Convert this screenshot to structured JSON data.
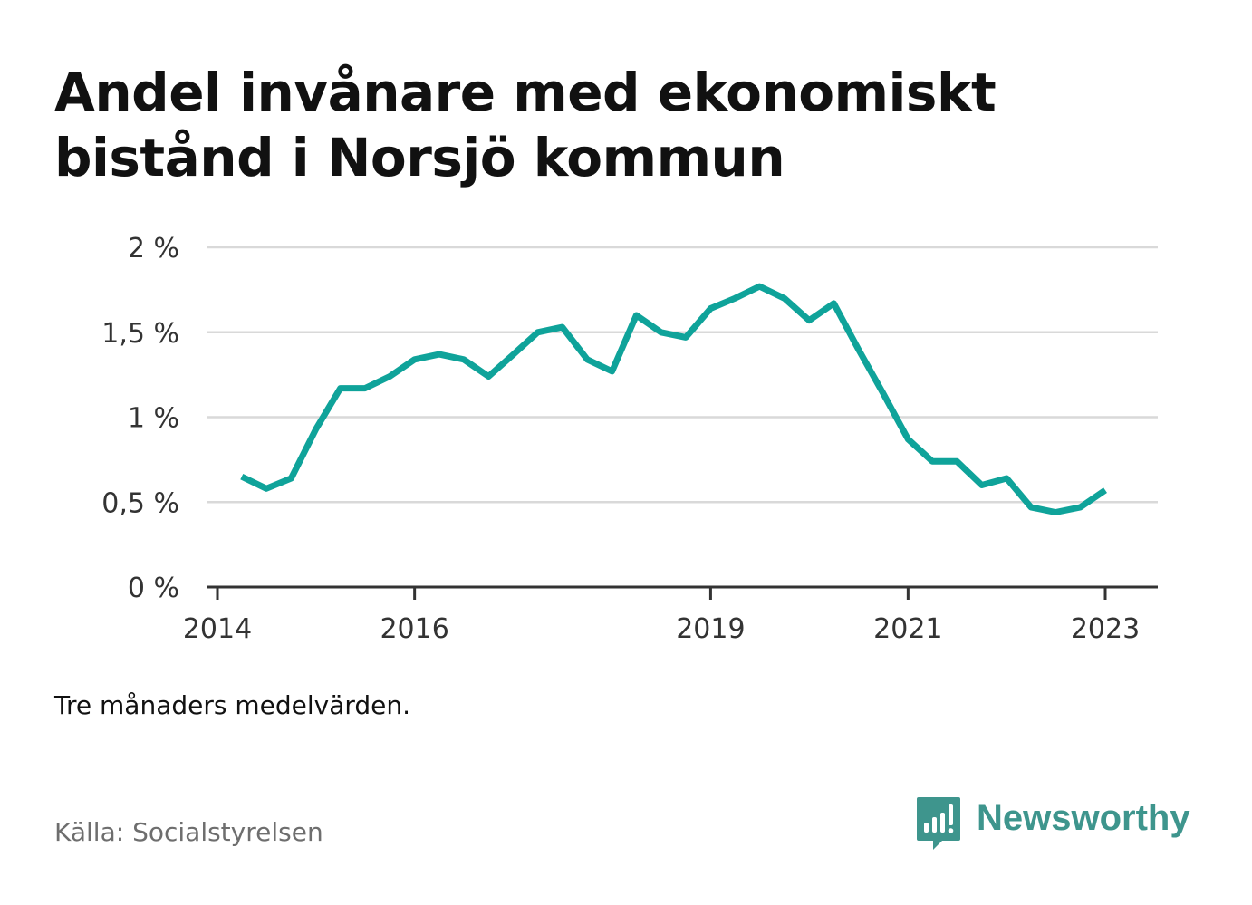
{
  "title": "Andel invånare med ekonomiskt bistånd i Norsjö kommun",
  "note": "Tre månaders medelvärden.",
  "source": "Källa: Socialstyrelsen",
  "brand": {
    "name": "Newsworthy",
    "icon": "bar-chart-speech-bubble-icon",
    "color": "#3e958d"
  },
  "colors": {
    "line": "#0fa39a",
    "grid": "#d9d9d9",
    "axis": "#333333"
  },
  "chart_data": {
    "type": "line",
    "title": "Andel invånare med ekonomiskt bistånd i Norsjö kommun",
    "xlabel": "",
    "ylabel": "",
    "ylim": [
      0,
      2
    ],
    "xlim": [
      "2014-01-01",
      "2023-07-01"
    ],
    "grid": true,
    "y_ticks": [
      0,
      0.5,
      1,
      1.5,
      2
    ],
    "y_tick_labels": [
      "0 %",
      "0,5 %",
      "1 %",
      "1,5 %",
      "2 %"
    ],
    "x_ticks": [
      "2014-01-01",
      "2016-01-01",
      "2019-01-01",
      "2021-01-01",
      "2023-01-01"
    ],
    "x_tick_labels": [
      "2014",
      "2016",
      "2019",
      "2021",
      "2023"
    ],
    "series": [
      {
        "color": "#0fa39a",
        "points": [
          {
            "x": "2014-04-01",
            "y": 0.65
          },
          {
            "x": "2014-07-01",
            "y": 0.58
          },
          {
            "x": "2014-10-01",
            "y": 0.64
          },
          {
            "x": "2015-01-01",
            "y": 0.93
          },
          {
            "x": "2015-04-01",
            "y": 1.17
          },
          {
            "x": "2015-07-01",
            "y": 1.17
          },
          {
            "x": "2015-10-01",
            "y": 1.24
          },
          {
            "x": "2016-01-01",
            "y": 1.34
          },
          {
            "x": "2016-04-01",
            "y": 1.37
          },
          {
            "x": "2016-07-01",
            "y": 1.34
          },
          {
            "x": "2016-10-01",
            "y": 1.24
          },
          {
            "x": "2017-01-01",
            "y": 1.37
          },
          {
            "x": "2017-04-01",
            "y": 1.5
          },
          {
            "x": "2017-07-01",
            "y": 1.53
          },
          {
            "x": "2017-10-01",
            "y": 1.34
          },
          {
            "x": "2018-01-01",
            "y": 1.27
          },
          {
            "x": "2018-04-01",
            "y": 1.6
          },
          {
            "x": "2018-07-01",
            "y": 1.5
          },
          {
            "x": "2018-10-01",
            "y": 1.47
          },
          {
            "x": "2019-01-01",
            "y": 1.64
          },
          {
            "x": "2019-04-01",
            "y": 1.7
          },
          {
            "x": "2019-07-01",
            "y": 1.77
          },
          {
            "x": "2019-10-01",
            "y": 1.7
          },
          {
            "x": "2020-01-01",
            "y": 1.57
          },
          {
            "x": "2020-04-01",
            "y": 1.67
          },
          {
            "x": "2020-07-01",
            "y": 1.4
          },
          {
            "x": "2020-10-01",
            "y": 1.14
          },
          {
            "x": "2021-01-01",
            "y": 0.87
          },
          {
            "x": "2021-04-01",
            "y": 0.74
          },
          {
            "x": "2021-07-01",
            "y": 0.74
          },
          {
            "x": "2021-10-01",
            "y": 0.6
          },
          {
            "x": "2022-01-01",
            "y": 0.64
          },
          {
            "x": "2022-04-01",
            "y": 0.47
          },
          {
            "x": "2022-07-01",
            "y": 0.44
          },
          {
            "x": "2022-10-01",
            "y": 0.47
          },
          {
            "x": "2023-01-01",
            "y": 0.57
          }
        ]
      }
    ]
  }
}
